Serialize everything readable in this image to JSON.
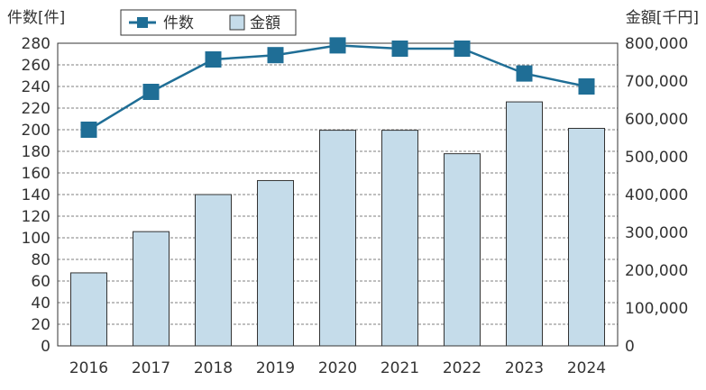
{
  "chart_data": {
    "type": "bar+line",
    "categories": [
      "2016",
      "2017",
      "2018",
      "2019",
      "2020",
      "2021",
      "2022",
      "2023",
      "2024"
    ],
    "series": [
      {
        "name": "件数",
        "type": "line",
        "axis": "left",
        "values": [
          200,
          235,
          265,
          269,
          278,
          275,
          275,
          252,
          240
        ],
        "color": "#1f6e96"
      },
      {
        "name": "金額",
        "type": "bar",
        "axis": "right",
        "values": [
          193000,
          302000,
          400000,
          437000,
          570000,
          570000,
          508000,
          645000,
          575000
        ],
        "color": "#c5dcea",
        "edge_color": "#333333"
      }
    ],
    "y_left": {
      "label": "件数[件]",
      "range": [
        0,
        280
      ],
      "ticks": [
        "0",
        "20",
        "40",
        "60",
        "80",
        "100",
        "120",
        "140",
        "160",
        "180",
        "200",
        "220",
        "240",
        "260",
        "280"
      ]
    },
    "y_right": {
      "label": "金額[千円]",
      "range": [
        0,
        800000
      ],
      "ticks": [
        "0",
        "100,000",
        "200,000",
        "300,000",
        "400,000",
        "500,000",
        "600,000",
        "700,000",
        "800,000"
      ]
    },
    "grid": "dashed horizontal",
    "legend_position": "top-center"
  }
}
